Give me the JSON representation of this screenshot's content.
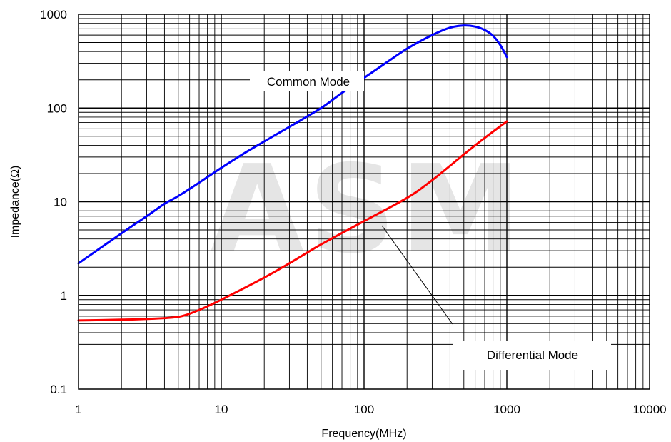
{
  "chart_data": {
    "type": "line",
    "title": "",
    "xlabel": "Frequency(MHz)",
    "ylabel": "Impedance(Ω)",
    "x_scale": "log",
    "y_scale": "log",
    "xlim": [
      1,
      10000
    ],
    "ylim": [
      0.1,
      1000
    ],
    "x_ticks": [
      "1",
      "10",
      "100",
      "1000",
      "10000"
    ],
    "y_ticks": [
      "1000",
      "100",
      "10",
      "1",
      "0.1"
    ],
    "grid": true,
    "watermark": "ASM",
    "series": [
      {
        "name": "Common Mode",
        "color": "#0000ff",
        "x": [
          1,
          2,
          3,
          4,
          5,
          7,
          10,
          15,
          20,
          30,
          50,
          70,
          100,
          150,
          200,
          300,
          400,
          500,
          600,
          700,
          800,
          900,
          1000
        ],
        "y": [
          2.2,
          4.6,
          7,
          9.5,
          11.5,
          16,
          23,
          34,
          44,
          63,
          100,
          145,
          210,
          320,
          430,
          600,
          720,
          760,
          740,
          680,
          590,
          470,
          350
        ]
      },
      {
        "name": "Differential Mode",
        "color": "#ff0000",
        "x": [
          1,
          2,
          3,
          5,
          7,
          10,
          20,
          30,
          50,
          100,
          200,
          300,
          500,
          700,
          1000
        ],
        "y": [
          0.54,
          0.55,
          0.56,
          0.59,
          0.7,
          0.9,
          1.55,
          2.2,
          3.5,
          6.2,
          11,
          17,
          32,
          48,
          72
        ]
      }
    ]
  }
}
